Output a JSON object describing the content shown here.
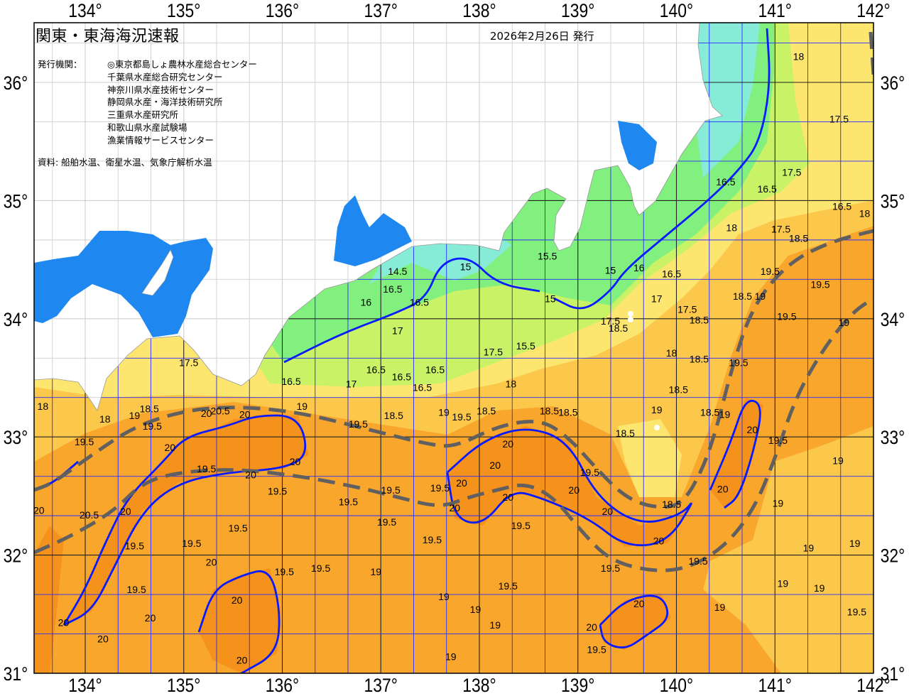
{
  "header": {
    "title": "関東・東海海況速報",
    "issue_date": "2026年2月26日 発行",
    "agencies_label": "発行機関：",
    "agencies": [
      "◎東京都島しょ農林水産総合センター",
      "千葉県水産総合研究センター",
      "神奈川県水産技術センター",
      "静岡県水産・海洋技術研究所",
      "三重県水産研究所",
      "和歌山県水産試験場",
      "漁業情報サービスセンター"
    ],
    "sources": "資料: 船舶水温、衛星水温、気象庁解析水温"
  },
  "map": {
    "lon_range": [
      133.5,
      142
    ],
    "lat_range": [
      31,
      36.5
    ],
    "lon_ticks": [
      "134°",
      "135°",
      "136°",
      "137°",
      "138°",
      "139°",
      "140°",
      "141°",
      "142°"
    ],
    "lat_ticks": [
      "36°",
      "35°",
      "34°",
      "33°",
      "32°",
      "31°"
    ],
    "colors": {
      "land": "#ffffff",
      "warm_core": "#f5921c",
      "t19_5": "#f8a62c",
      "t19": "#fcc84c",
      "t18": "#fde670",
      "t17": "#c9f266",
      "t16": "#82f07e",
      "t15": "#86ecd8",
      "inner_bay": "#1e88f0",
      "contour_20": "#0a1aff",
      "grid": "#2b2bff",
      "kuroshio_axis": "#606060"
    },
    "contour_labels": [
      {
        "t": "18",
        "lon": 141.24,
        "lat": 36.22
      },
      {
        "t": "17.5",
        "lon": 141.65,
        "lat": 35.69
      },
      {
        "t": "17.5",
        "lon": 141.17,
        "lat": 35.24
      },
      {
        "t": "16.5",
        "lon": 140.5,
        "lat": 35.16
      },
      {
        "t": "16.5",
        "lon": 140.92,
        "lat": 35.1
      },
      {
        "t": "16.5",
        "lon": 141.68,
        "lat": 34.95
      },
      {
        "t": "18",
        "lon": 141.91,
        "lat": 34.89
      },
      {
        "t": "18",
        "lon": 140.56,
        "lat": 34.77
      },
      {
        "t": "17.5",
        "lon": 141.06,
        "lat": 34.76
      },
      {
        "t": "18.5",
        "lon": 141.24,
        "lat": 34.68
      },
      {
        "t": "19.5",
        "lon": 140.95,
        "lat": 34.4
      },
      {
        "t": "19.5",
        "lon": 141.46,
        "lat": 34.29
      },
      {
        "t": "19",
        "lon": 140.85,
        "lat": 34.19
      },
      {
        "t": "19.5",
        "lon": 141.12,
        "lat": 34.02
      },
      {
        "t": "19",
        "lon": 141.7,
        "lat": 33.97
      },
      {
        "t": "18.5",
        "lon": 140.67,
        "lat": 34.19
      },
      {
        "t": "18.5",
        "lon": 140.23,
        "lat": 33.99
      },
      {
        "t": "17.5",
        "lon": 140.11,
        "lat": 34.08
      },
      {
        "t": "17",
        "lon": 139.8,
        "lat": 34.17
      },
      {
        "t": "16.5",
        "lon": 139.95,
        "lat": 34.38
      },
      {
        "t": "16",
        "lon": 139.62,
        "lat": 34.43
      },
      {
        "t": "15",
        "lon": 139.33,
        "lat": 34.41
      },
      {
        "t": "15",
        "lon": 138.72,
        "lat": 34.17
      },
      {
        "t": "15.5",
        "lon": 138.69,
        "lat": 34.53
      },
      {
        "t": "15",
        "lon": 137.86,
        "lat": 34.44
      },
      {
        "t": "14.5",
        "lon": 137.17,
        "lat": 34.4
      },
      {
        "t": "16.5",
        "lon": 137.12,
        "lat": 34.25
      },
      {
        "t": "16",
        "lon": 136.85,
        "lat": 34.14
      },
      {
        "t": "16.5",
        "lon": 137.39,
        "lat": 34.14
      },
      {
        "t": "17",
        "lon": 137.17,
        "lat": 33.9
      },
      {
        "t": "17.5",
        "lon": 139.33,
        "lat": 33.98
      },
      {
        "t": "18.5",
        "lon": 139.41,
        "lat": 33.92
      },
      {
        "t": "17.5",
        "lon": 138.14,
        "lat": 33.72
      },
      {
        "t": "15.5",
        "lon": 138.47,
        "lat": 33.77
      },
      {
        "t": "18",
        "lon": 139.95,
        "lat": 33.71
      },
      {
        "t": "18.5",
        "lon": 140.23,
        "lat": 33.66
      },
      {
        "t": "19.5",
        "lon": 140.63,
        "lat": 33.63
      },
      {
        "t": "16.5",
        "lon": 136.95,
        "lat": 33.57
      },
      {
        "t": "16.5",
        "lon": 137.21,
        "lat": 33.51
      },
      {
        "t": "16.5",
        "lon": 137.55,
        "lat": 33.57
      },
      {
        "t": "17.5",
        "lon": 135.05,
        "lat": 33.63
      },
      {
        "t": "16.5",
        "lon": 136.09,
        "lat": 33.47
      },
      {
        "t": "17",
        "lon": 136.7,
        "lat": 33.45
      },
      {
        "t": "18",
        "lon": 138.32,
        "lat": 33.45
      },
      {
        "t": "16.5",
        "lon": 137.42,
        "lat": 33.42
      },
      {
        "t": "18.5",
        "lon": 140.02,
        "lat": 33.4
      },
      {
        "t": "18",
        "lon": 133.57,
        "lat": 33.26
      },
      {
        "t": "18",
        "lon": 134.2,
        "lat": 33.15
      },
      {
        "t": "19",
        "lon": 134.5,
        "lat": 33.18
      },
      {
        "t": "18.5",
        "lon": 134.65,
        "lat": 33.24
      },
      {
        "t": "19.5",
        "lon": 134.68,
        "lat": 33.09
      },
      {
        "t": "20",
        "lon": 135.23,
        "lat": 33.2
      },
      {
        "t": "20.5",
        "lon": 135.37,
        "lat": 33.22
      },
      {
        "t": "20",
        "lon": 135.62,
        "lat": 33.19
      },
      {
        "t": "19",
        "lon": 136.2,
        "lat": 33.26
      },
      {
        "t": "19.5",
        "lon": 136.77,
        "lat": 33.11
      },
      {
        "t": "18.5",
        "lon": 137.13,
        "lat": 33.18
      },
      {
        "t": "19",
        "lon": 137.64,
        "lat": 33.21
      },
      {
        "t": "19.5",
        "lon": 137.82,
        "lat": 33.17
      },
      {
        "t": "18.5",
        "lon": 138.07,
        "lat": 33.22
      },
      {
        "t": "18.5",
        "lon": 138.71,
        "lat": 33.22
      },
      {
        "t": "18.5",
        "lon": 138.9,
        "lat": 33.21
      },
      {
        "t": "19",
        "lon": 139.8,
        "lat": 33.23
      },
      {
        "t": "18.5",
        "lon": 140.34,
        "lat": 33.21
      },
      {
        "t": "19",
        "lon": 140.49,
        "lat": 33.19
      },
      {
        "t": "18.5",
        "lon": 139.48,
        "lat": 33.03
      },
      {
        "t": "19.5",
        "lon": 133.99,
        "lat": 32.96
      },
      {
        "t": "20",
        "lon": 134.86,
        "lat": 32.91
      },
      {
        "t": "19.5",
        "lon": 135.23,
        "lat": 32.73
      },
      {
        "t": "20",
        "lon": 135.68,
        "lat": 32.68
      },
      {
        "t": "20",
        "lon": 136.13,
        "lat": 32.79
      },
      {
        "t": "19.5",
        "lon": 135.95,
        "lat": 32.54
      },
      {
        "t": "19.5",
        "lon": 137.1,
        "lat": 32.55
      },
      {
        "t": "19.5",
        "lon": 137.6,
        "lat": 32.57
      },
      {
        "t": "20",
        "lon": 137.82,
        "lat": 32.61
      },
      {
        "t": "19.5",
        "lon": 136.67,
        "lat": 32.45
      },
      {
        "t": "19.5",
        "lon": 137.06,
        "lat": 32.28
      },
      {
        "t": "20",
        "lon": 138.29,
        "lat": 32.94
      },
      {
        "t": "20",
        "lon": 138.16,
        "lat": 32.76
      },
      {
        "t": "20",
        "lon": 137.75,
        "lat": 32.4
      },
      {
        "t": "20",
        "lon": 138.29,
        "lat": 32.49
      },
      {
        "t": "19.5",
        "lon": 138.42,
        "lat": 32.25
      },
      {
        "t": "19.5",
        "lon": 139.12,
        "lat": 32.7
      },
      {
        "t": "20",
        "lon": 138.96,
        "lat": 32.55
      },
      {
        "t": "20",
        "lon": 139.3,
        "lat": 32.37
      },
      {
        "t": "18.5",
        "lon": 139.95,
        "lat": 32.43
      },
      {
        "t": "20",
        "lon": 139.82,
        "lat": 32.12
      },
      {
        "t": "20",
        "lon": 140.47,
        "lat": 32.56
      },
      {
        "t": "20",
        "lon": 140.77,
        "lat": 33.06
      },
      {
        "t": "19.5",
        "lon": 141.03,
        "lat": 32.97
      },
      {
        "t": "19",
        "lon": 141.64,
        "lat": 32.8
      },
      {
        "t": "19",
        "lon": 141.03,
        "lat": 32.44
      },
      {
        "t": "19",
        "lon": 141.34,
        "lat": 32.06
      },
      {
        "t": "19",
        "lon": 141.81,
        "lat": 32.1
      },
      {
        "t": "19",
        "lon": 141.08,
        "lat": 31.76
      },
      {
        "t": "19",
        "lon": 141.45,
        "lat": 31.72
      },
      {
        "t": "19",
        "lon": 140.44,
        "lat": 31.56
      },
      {
        "t": "19.5",
        "lon": 141.83,
        "lat": 31.52
      },
      {
        "t": "19.5",
        "lon": 140.22,
        "lat": 31.95
      },
      {
        "t": "19.5",
        "lon": 139.33,
        "lat": 31.89
      },
      {
        "t": "20",
        "lon": 139.62,
        "lat": 31.59
      },
      {
        "t": "20",
        "lon": 139.14,
        "lat": 31.39
      },
      {
        "t": "19.5",
        "lon": 139.19,
        "lat": 31.2
      },
      {
        "t": "19.5",
        "lon": 138.29,
        "lat": 31.74
      },
      {
        "t": "19",
        "lon": 137.96,
        "lat": 31.54
      },
      {
        "t": "19",
        "lon": 138.16,
        "lat": 31.41
      },
      {
        "t": "19",
        "lon": 137.64,
        "lat": 31.65
      },
      {
        "t": "19",
        "lon": 137.71,
        "lat": 31.14
      },
      {
        "t": "19.5",
        "lon": 137.52,
        "lat": 32.13
      },
      {
        "t": "19.5",
        "lon": 135.55,
        "lat": 32.23
      },
      {
        "t": "19.5",
        "lon": 134.5,
        "lat": 32.08
      },
      {
        "t": "19.5",
        "lon": 135.08,
        "lat": 32.1
      },
      {
        "t": "20.5",
        "lon": 134.04,
        "lat": 32.34
      },
      {
        "t": "20",
        "lon": 134.41,
        "lat": 32.37
      },
      {
        "t": "20",
        "lon": 133.53,
        "lat": 32.38
      },
      {
        "t": "19.5",
        "lon": 134.52,
        "lat": 31.71
      },
      {
        "t": "20",
        "lon": 135.28,
        "lat": 31.94
      },
      {
        "t": "19.5",
        "lon": 136.02,
        "lat": 31.86
      },
      {
        "t": "19.5",
        "lon": 136.39,
        "lat": 31.89
      },
      {
        "t": "19",
        "lon": 136.95,
        "lat": 31.86
      },
      {
        "t": "20",
        "lon": 133.78,
        "lat": 31.43
      },
      {
        "t": "20",
        "lon": 134.18,
        "lat": 31.29
      },
      {
        "t": "20",
        "lon": 134.66,
        "lat": 31.47
      },
      {
        "t": "20",
        "lon": 135.54,
        "lat": 31.62
      },
      {
        "t": "20",
        "lon": 135.59,
        "lat": 31.11
      }
    ]
  }
}
